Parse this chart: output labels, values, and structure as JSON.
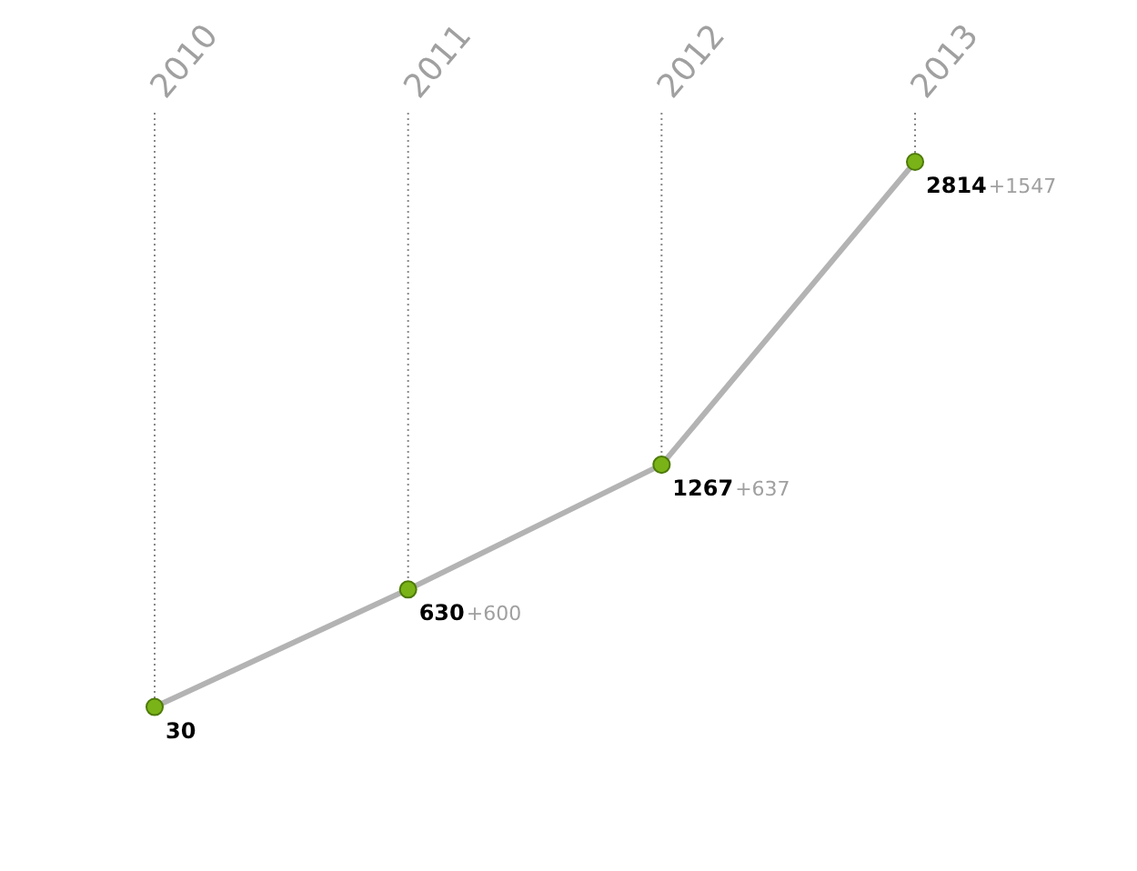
{
  "chart_data": {
    "type": "line",
    "categories": [
      "2010",
      "2011",
      "2012",
      "2013"
    ],
    "series": [
      {
        "color": "#b3b3b3",
        "values": [
          30,
          630,
          1267,
          2814
        ]
      }
    ],
    "data_labels": true,
    "marker": "circle",
    "line_style": "solid",
    "grid": "x",
    "annotations": [
      "+600",
      "+637",
      "+1547"
    ]
  }
}
